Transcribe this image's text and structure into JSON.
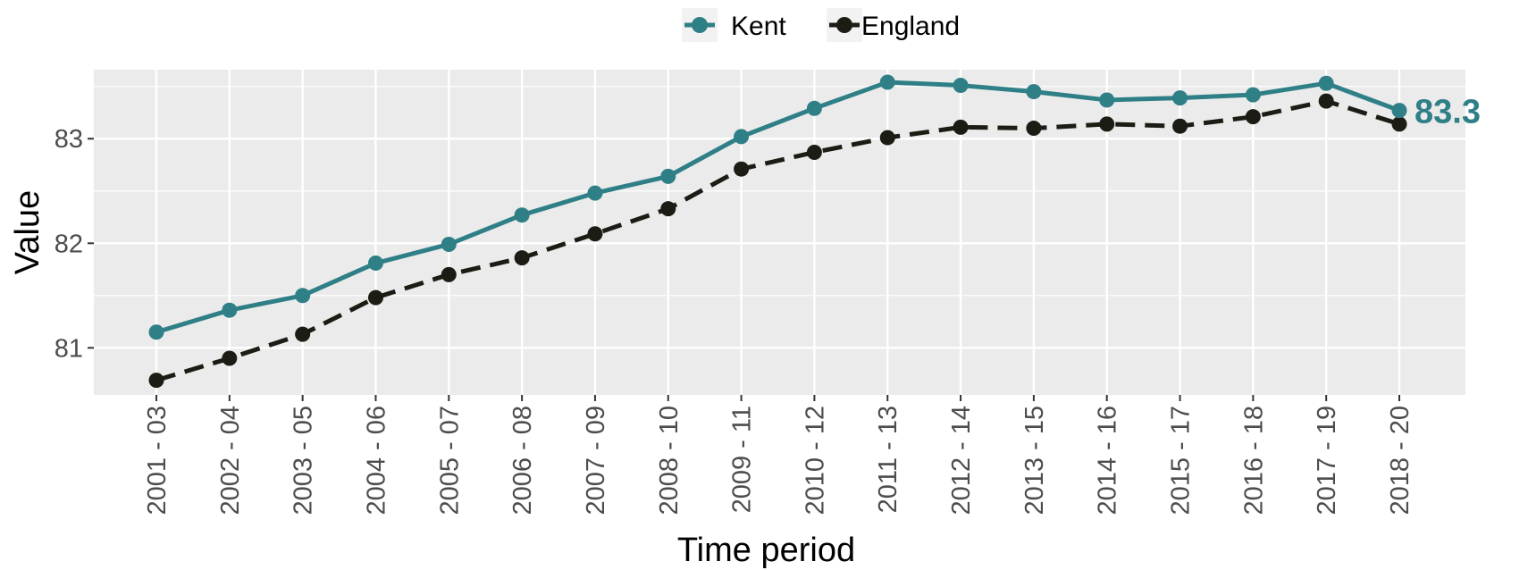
{
  "chart_data": {
    "type": "line",
    "xlabel": "Time period",
    "ylabel": "Value",
    "ylim": [
      80.55,
      83.66
    ],
    "yticks": [
      81,
      82,
      83
    ],
    "grid": true,
    "legend_position": "top",
    "categories": [
      "2001 - 03",
      "2002 - 04",
      "2003 - 05",
      "2004 - 06",
      "2005 - 07",
      "2006 - 08",
      "2007 - 09",
      "2008 - 10",
      "2009 - 11",
      "2010 - 12",
      "2011 - 13",
      "2012 - 14",
      "2013 - 15",
      "2014 - 16",
      "2015 - 17",
      "2016 - 18",
      "2017 - 19",
      "2018 - 20"
    ],
    "series": [
      {
        "name": "Kent",
        "color": "#2f7f87",
        "line_style": "solid",
        "values": [
          81.15,
          81.36,
          81.5,
          81.81,
          81.99,
          82.27,
          82.48,
          82.64,
          83.02,
          83.29,
          83.54,
          83.51,
          83.45,
          83.37,
          83.39,
          83.42,
          83.53,
          83.27
        ]
      },
      {
        "name": "England",
        "color": "#1c1c14",
        "line_style": "dashed",
        "values": [
          80.69,
          80.9,
          81.13,
          81.48,
          81.7,
          81.86,
          82.09,
          82.33,
          82.71,
          82.87,
          83.01,
          83.11,
          83.1,
          83.14,
          83.12,
          83.21,
          83.36,
          83.14
        ]
      }
    ],
    "end_label": {
      "text": "83.3",
      "color": "#2f7f87"
    },
    "panel_background": "#ebebeb",
    "grid_color": "#ffffff"
  }
}
